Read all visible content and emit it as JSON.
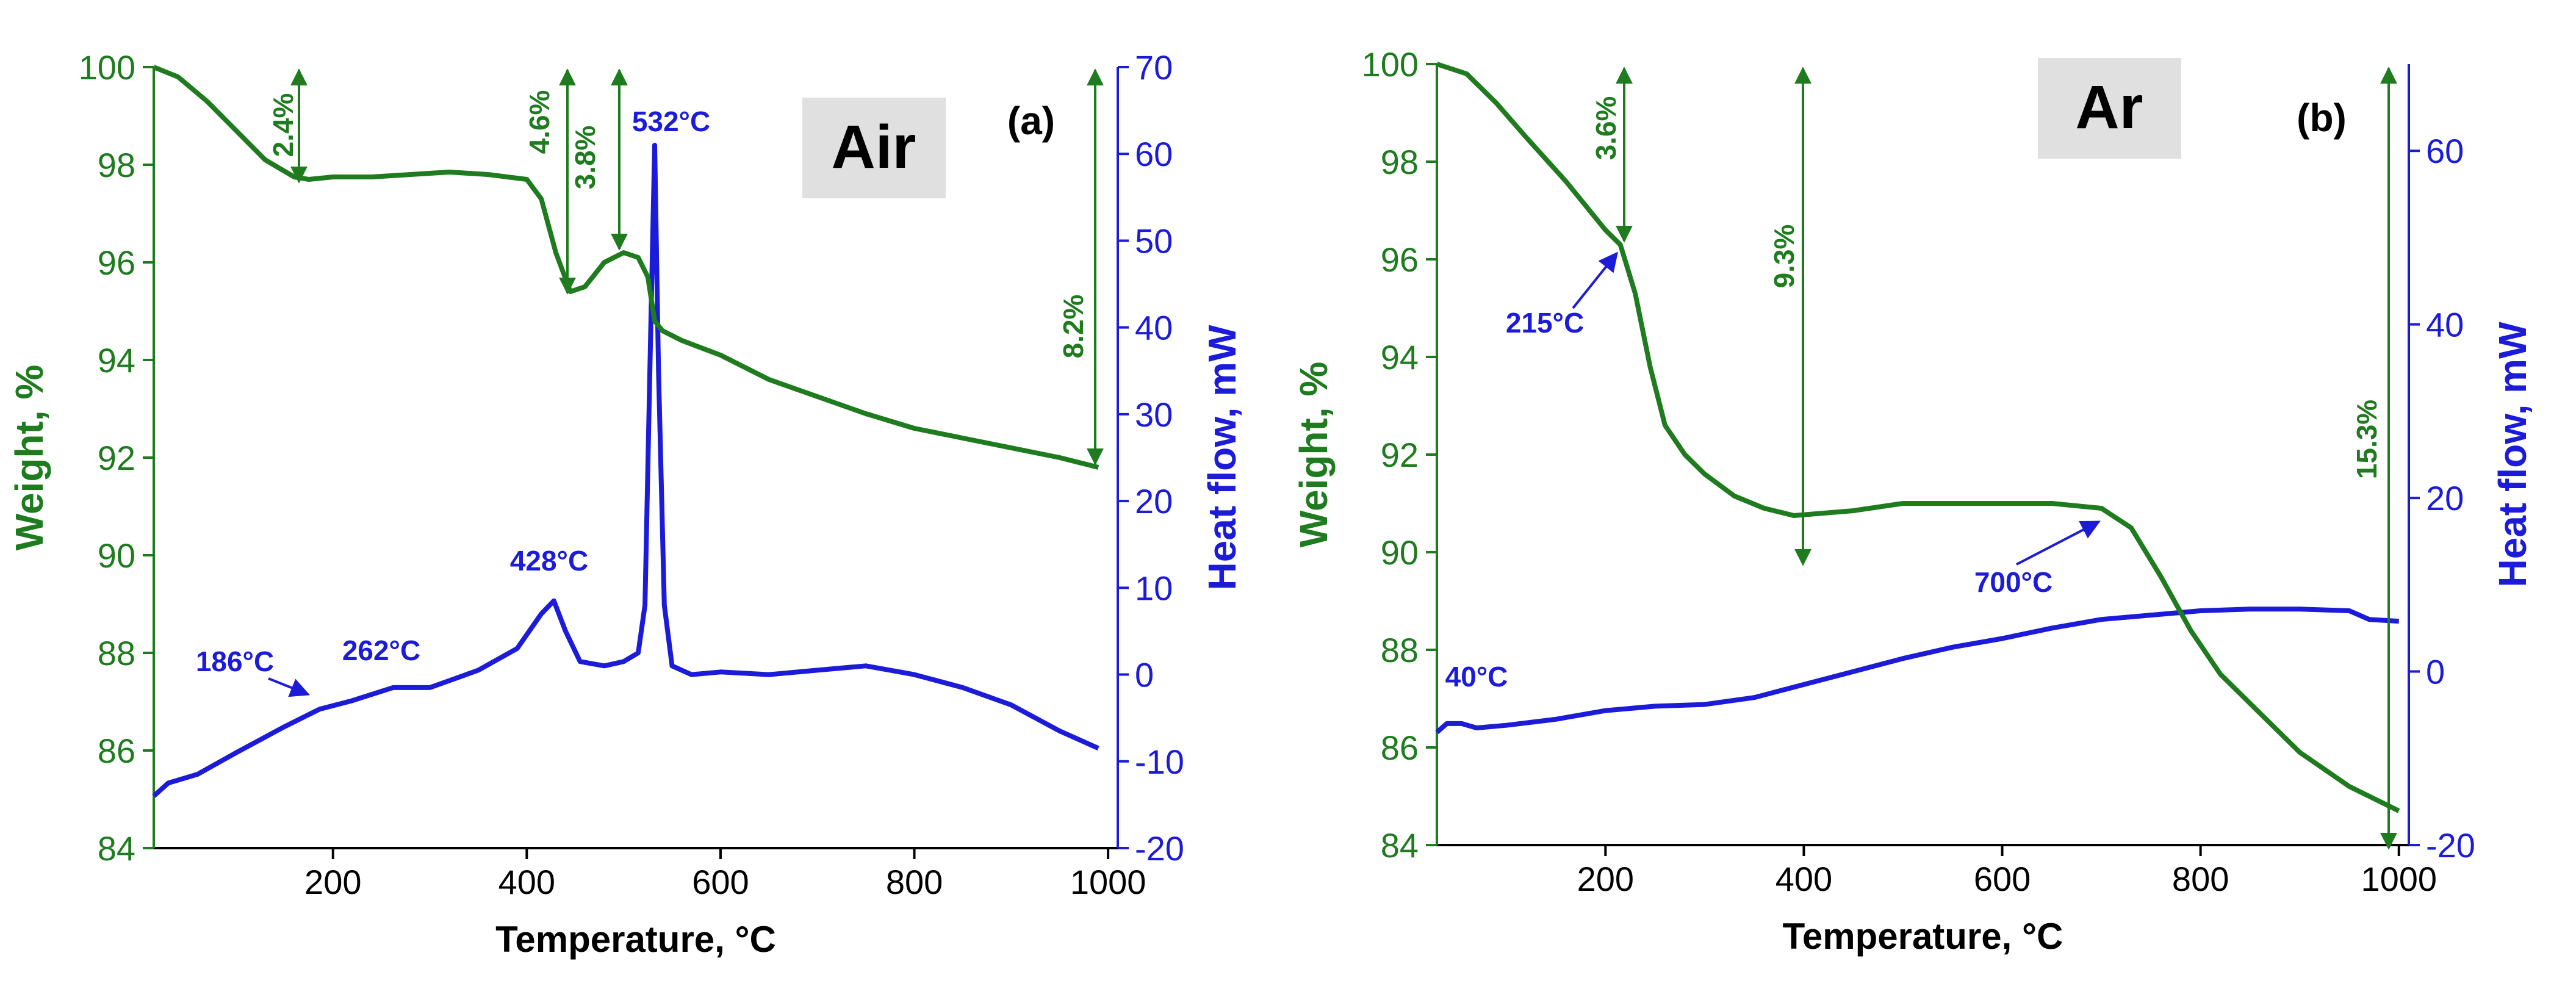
{
  "colors": {
    "weight": "#1e7b1e",
    "heat": "#1b1bd9",
    "axis_text": "#1e7b1e",
    "label_box": "#e0e0e0",
    "black": "#000000"
  },
  "chart_data": [
    {
      "type": "line",
      "panel": "(a)",
      "atmosphere": "Air",
      "xlabel": "Temperature, °C",
      "ylabel_left": "Weight, %",
      "ylabel_right": "Heat flow, mW",
      "xlim": [
        15,
        1010
      ],
      "ylim_left": [
        84,
        100
      ],
      "ylim_right": [
        -20,
        70
      ],
      "x_ticks": [
        "200",
        "400",
        "600",
        "800",
        "1000"
      ],
      "x_tick_values": [
        200,
        400,
        600,
        800,
        1000
      ],
      "y_left_ticks": [
        "84",
        "86",
        "88",
        "90",
        "92",
        "94",
        "96",
        "98",
        "100"
      ],
      "y_left_tick_values": [
        84,
        86,
        88,
        90,
        92,
        94,
        96,
        98,
        100
      ],
      "y_right_ticks": [
        "-20",
        "-10",
        "0",
        "10",
        "20",
        "30",
        "40",
        "50",
        "60",
        "70"
      ],
      "y_right_tick_values": [
        -20,
        -10,
        0,
        10,
        20,
        30,
        40,
        50,
        60,
        70
      ],
      "series": [
        {
          "name": "Weight",
          "axis": "left",
          "x": [
            15,
            40,
            70,
            100,
            130,
            160,
            175,
            200,
            240,
            280,
            320,
            360,
            400,
            415,
            430,
            445,
            460,
            480,
            500,
            515,
            525,
            532,
            540,
            560,
            600,
            650,
            700,
            750,
            800,
            850,
            900,
            950,
            990
          ],
          "y": [
            100.0,
            99.8,
            99.3,
            98.7,
            98.1,
            97.75,
            97.7,
            97.75,
            97.75,
            97.8,
            97.85,
            97.8,
            97.7,
            97.3,
            96.2,
            95.4,
            95.5,
            96.0,
            96.2,
            96.1,
            95.7,
            94.8,
            94.6,
            94.4,
            94.1,
            93.6,
            93.25,
            92.9,
            92.6,
            92.4,
            92.2,
            92.0,
            91.8
          ]
        },
        {
          "name": "Heat flow",
          "axis": "right",
          "x": [
            15,
            30,
            60,
            100,
            150,
            186,
            220,
            262,
            300,
            350,
            390,
            415,
            428,
            440,
            455,
            480,
            500,
            515,
            522,
            528,
            532,
            536,
            542,
            550,
            570,
            600,
            650,
            700,
            750,
            800,
            850,
            900,
            950,
            990
          ],
          "y": [
            -14.0,
            -12.5,
            -11.5,
            -9.0,
            -6.0,
            -4.0,
            -3.0,
            -1.5,
            -1.5,
            0.5,
            3.0,
            7.0,
            8.5,
            5.0,
            1.5,
            1.0,
            1.5,
            2.5,
            8.0,
            40.0,
            61.0,
            35.0,
            8.0,
            1.0,
            0.0,
            0.3,
            0.0,
            0.5,
            1.0,
            0.0,
            -1.5,
            -3.5,
            -6.5,
            -8.5
          ]
        }
      ],
      "annotations": {
        "loss_1": "2.4%",
        "loss_2": "4.6%",
        "loss_3": "3.8%",
        "loss_total": "8.2%",
        "peak_186": "186°C",
        "peak_262": "262°C",
        "peak_428": "428°C",
        "peak_532": "532°C"
      }
    },
    {
      "type": "line",
      "panel": "(b)",
      "atmosphere": "Ar",
      "xlabel": "Temperature, °C",
      "ylabel_left": "Weight, %",
      "ylabel_right": "Heat flow, mW",
      "xlim": [
        30,
        1010
      ],
      "ylim_left": [
        84,
        100
      ],
      "ylim_right": [
        -20,
        70
      ],
      "x_ticks": [
        "200",
        "400",
        "600",
        "800",
        "1000"
      ],
      "x_tick_values": [
        200,
        400,
        600,
        800,
        1000
      ],
      "y_left_ticks": [
        "84",
        "86",
        "88",
        "90",
        "92",
        "94",
        "96",
        "98",
        "100"
      ],
      "y_left_tick_values": [
        84,
        86,
        88,
        90,
        92,
        94,
        96,
        98,
        100
      ],
      "y_right_ticks": [
        "-20",
        "0",
        "20",
        "40",
        "60"
      ],
      "y_right_tick_values": [
        -20,
        0,
        20,
        40,
        60
      ],
      "series": [
        {
          "name": "Weight",
          "axis": "left",
          "x": [
            30,
            60,
            90,
            120,
            160,
            200,
            215,
            230,
            245,
            260,
            280,
            300,
            330,
            360,
            390,
            420,
            450,
            500,
            550,
            600,
            650,
            700,
            730,
            760,
            790,
            820,
            860,
            900,
            950,
            1000
          ],
          "y": [
            100.0,
            99.8,
            99.2,
            98.5,
            97.6,
            96.6,
            96.3,
            95.3,
            93.8,
            92.6,
            92.0,
            91.6,
            91.15,
            90.9,
            90.75,
            90.8,
            90.85,
            91.0,
            91.0,
            91.0,
            91.0,
            90.9,
            90.5,
            89.5,
            88.4,
            87.5,
            86.7,
            85.9,
            85.2,
            84.7
          ]
        },
        {
          "name": "Heat flow",
          "axis": "right",
          "x": [
            30,
            40,
            55,
            70,
            100,
            150,
            200,
            250,
            300,
            350,
            400,
            450,
            500,
            550,
            600,
            650,
            700,
            750,
            800,
            850,
            900,
            950,
            960,
            970,
            1000
          ],
          "y": [
            -7.0,
            -6.0,
            -6.0,
            -6.5,
            -6.2,
            -5.5,
            -4.5,
            -4.0,
            -3.8,
            -3.0,
            -1.5,
            0.0,
            1.5,
            2.8,
            3.8,
            5.0,
            6.0,
            6.5,
            7.0,
            7.2,
            7.2,
            7.0,
            6.5,
            6.0,
            5.8
          ]
        }
      ],
      "annotations": {
        "loss_1": "3.6%",
        "loss_2": "9.3%",
        "loss_total": "15.3%",
        "peak_40": "40°C",
        "point_215": "215°C",
        "point_700": "700°C"
      }
    }
  ]
}
